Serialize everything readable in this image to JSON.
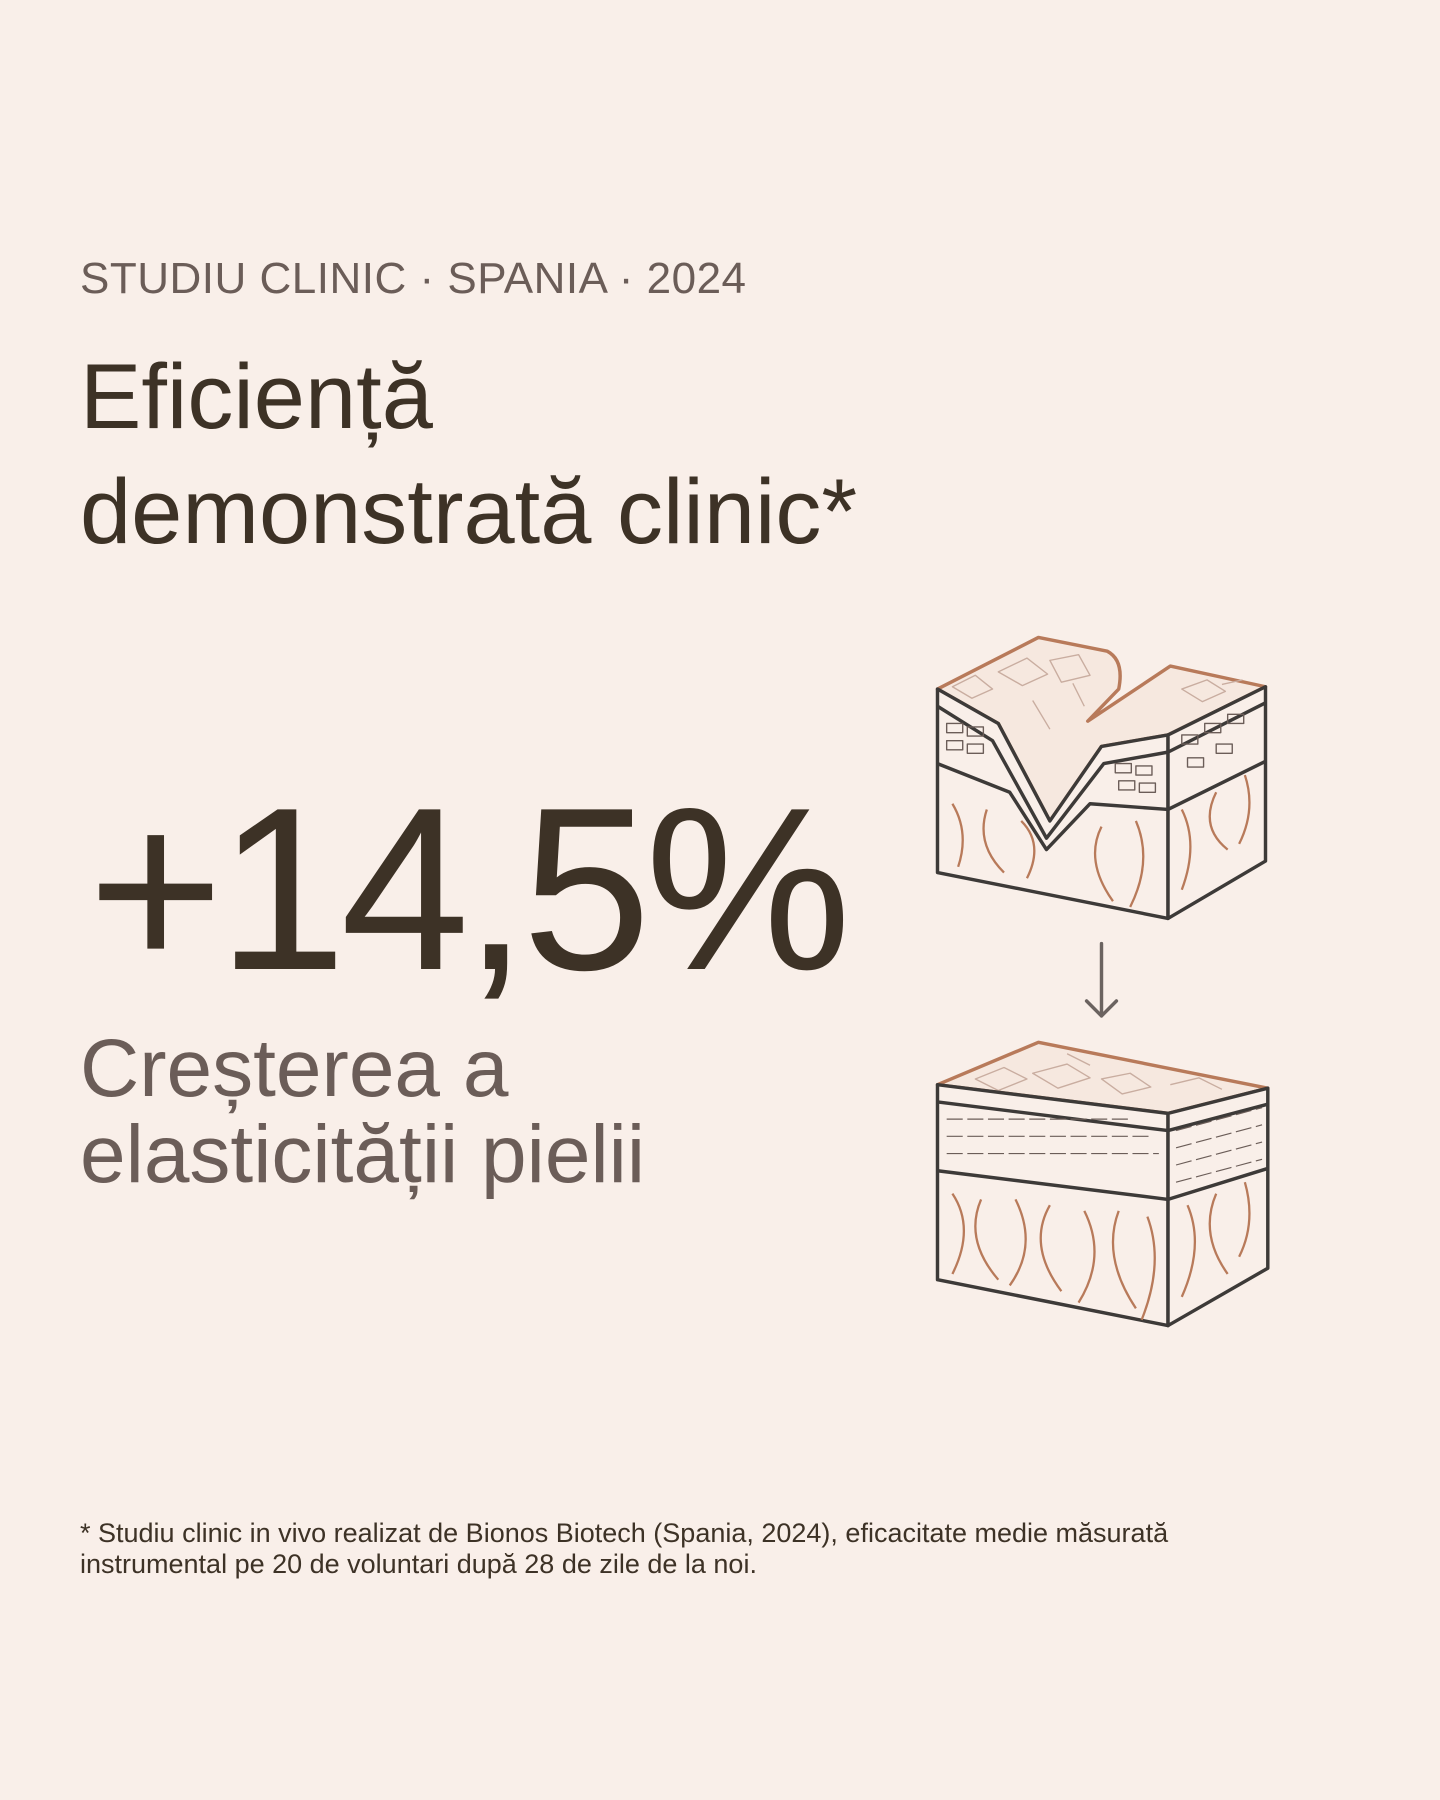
{
  "eyebrow": "STUDIU CLINIC · SPANIA · 2024",
  "title": {
    "line1": "Eficiență",
    "line2": "demonstrată clinic*"
  },
  "stat": {
    "value": "+14,5%",
    "caption_line1": "Creșterea a",
    "caption_line2": "elasticității pielii"
  },
  "footnote": {
    "line1": "* Studiu clinic in vivo realizat de Bionos Biotech (Spania, 2024), eficacitate medie măsurată",
    "line2": "instrumental pe 20 de voluntari după 28 de zile de la noi."
  }
}
